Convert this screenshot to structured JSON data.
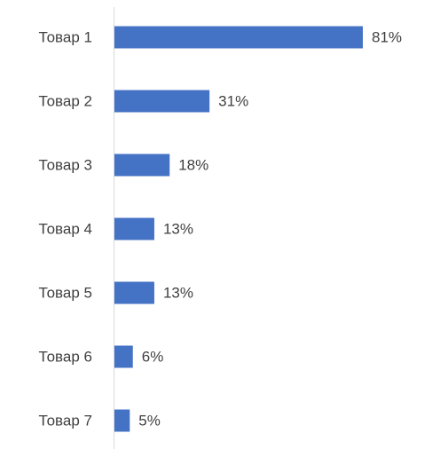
{
  "chart_data": {
    "type": "hbar",
    "categories": [
      "Товар 1",
      "Товар 2",
      "Товар 3",
      "Товар 4",
      "Товар 5",
      "Товар 6",
      "Товар 7"
    ],
    "values": [
      81,
      31,
      18,
      13,
      13,
      6,
      5
    ],
    "value_labels": [
      "81%",
      "31%",
      "18%",
      "13%",
      "13%",
      "6%",
      "5%"
    ],
    "color": "#4472c4",
    "xlim": [
      0,
      100
    ]
  }
}
